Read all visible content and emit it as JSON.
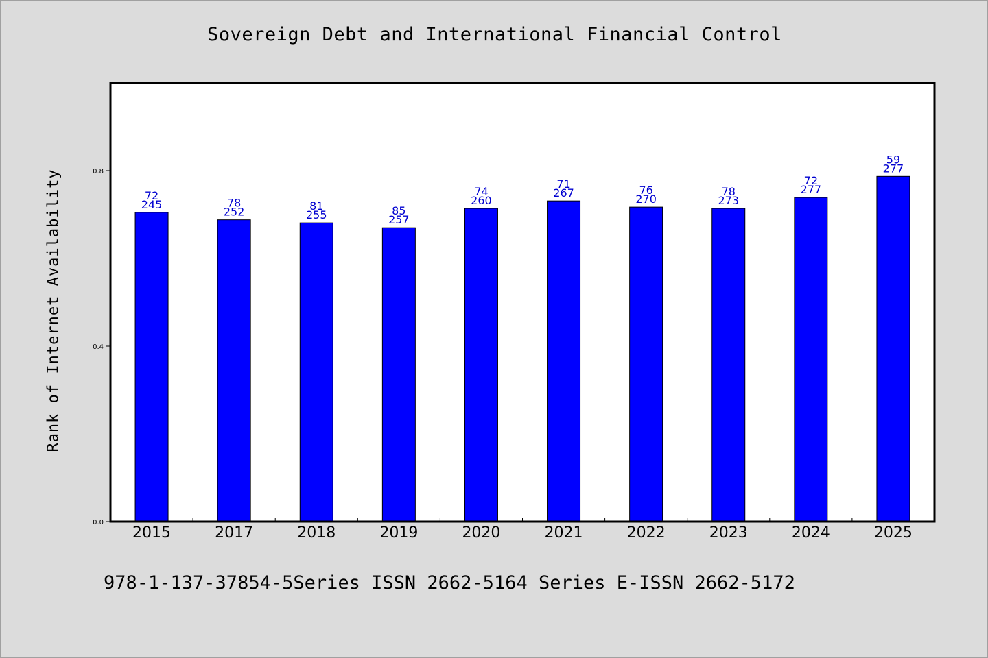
{
  "chart_data": {
    "type": "bar",
    "title": "Sovereign Debt and International Financial Control",
    "xlabel": "",
    "ylabel": "Rank of Internet Availability",
    "categories": [
      "2015",
      "2017",
      "2018",
      "2019",
      "2020",
      "2021",
      "2022",
      "2023",
      "2024",
      "2025"
    ],
    "values": [
      0.705,
      0.688,
      0.681,
      0.67,
      0.714,
      0.731,
      0.717,
      0.714,
      0.739,
      0.787
    ],
    "bar_labels_top": [
      "72",
      "78",
      "81",
      "85",
      "74",
      "71",
      "76",
      "78",
      "72",
      "59"
    ],
    "bar_labels_bottom": [
      "245",
      "252",
      "255",
      "257",
      "260",
      "267",
      "270",
      "273",
      "277",
      "277"
    ],
    "ylim": [
      0,
      1.0
    ],
    "yticks": [
      0.0,
      0.4,
      0.8
    ],
    "ytick_labels": [
      "0.0",
      "0.4",
      "0.8"
    ],
    "grid": false,
    "bar_color": "#0000ff",
    "label_color": "#0000d0"
  },
  "footer": {
    "text": "978-1-137-37854-5Series ISSN 2662-5164 Series E-ISSN 2662-5172"
  },
  "colors": {
    "background": "#dcdcdc",
    "plot_background": "#ffffff"
  }
}
